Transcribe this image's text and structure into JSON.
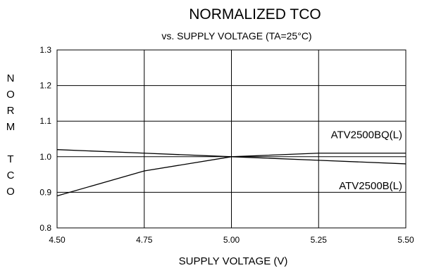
{
  "chart_data": {
    "type": "line",
    "title": "NORMALIZED TCO",
    "subtitle": "vs. SUPPLY VOLTAGE (TA=25°C)",
    "xlabel": "SUPPLY VOLTAGE (V)",
    "ylabel": "NORM TCO",
    "ylabel_lines": [
      "N",
      "O",
      "R",
      "M",
      "",
      "T",
      "C",
      "O"
    ],
    "xlim": [
      4.5,
      5.5
    ],
    "ylim": [
      0.8,
      1.3
    ],
    "x_ticks": [
      4.5,
      4.75,
      5.0,
      5.25,
      5.5
    ],
    "x_tick_labels": [
      "4.50",
      "4.75",
      "5.00",
      "5.25",
      "5.50"
    ],
    "y_ticks": [
      0.8,
      0.9,
      1.0,
      1.1,
      1.2,
      1.3
    ],
    "y_tick_labels": [
      "0.8",
      "0.9",
      "1.0",
      "1.1",
      "1.2",
      "1.3"
    ],
    "grid": true,
    "series": [
      {
        "name": "ATV2500BQ(L)",
        "x": [
          4.5,
          4.75,
          5.0,
          5.25,
          5.5
        ],
        "y": [
          0.89,
          0.96,
          1.0,
          1.01,
          1.01
        ]
      },
      {
        "name": "ATV2500B(L)",
        "x": [
          4.5,
          4.75,
          5.0,
          5.25,
          5.5
        ],
        "y": [
          1.02,
          1.01,
          1.0,
          0.99,
          0.98
        ]
      }
    ]
  }
}
